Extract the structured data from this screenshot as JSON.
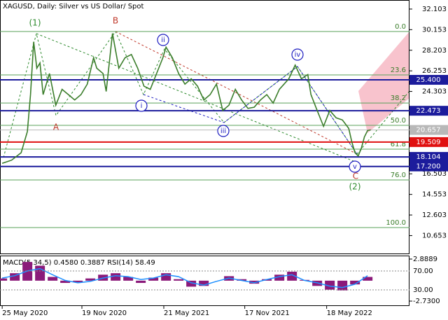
{
  "chart_data": {
    "type": "line",
    "title": "XAGUSD, Daily:  Silver vs US Dollar/ Spot",
    "color": "#3a7d2a",
    "x": [
      0,
      3,
      6,
      8,
      9,
      10,
      11,
      12,
      13,
      15,
      17,
      19,
      21,
      23,
      25,
      27,
      29,
      30,
      32,
      33,
      35,
      37,
      39,
      41,
      43,
      45,
      47,
      49,
      51,
      52,
      54,
      56,
      58,
      60,
      62,
      64,
      66,
      68,
      70,
      72,
      74,
      76,
      78,
      80,
      82,
      84,
      86,
      88,
      91,
      93,
      95,
      97,
      98,
      100,
      102,
      104,
      106,
      108,
      110,
      111,
      112,
      113,
      114,
      115,
      116,
      117
    ],
    "series": [
      {
        "values": [
          17.5,
          17.8,
          18.5,
          20.5,
          24,
          29,
          26.5,
          27,
          24,
          26,
          23,
          24.5,
          24,
          23.5,
          24,
          25,
          27.5,
          26.5,
          26,
          24.3,
          29.8,
          26.5,
          27.5,
          27.8,
          26.5,
          24.8,
          24.5,
          26,
          27.5,
          28.5,
          27.5,
          26,
          25,
          25.5,
          24.8,
          23.5,
          24,
          25,
          22.5,
          23,
          24.5,
          23.5,
          22.7,
          22.8,
          23.5,
          24,
          23.2,
          24.5,
          25.5,
          26.8,
          25.5,
          25.9,
          24,
          22.5,
          21,
          22.5,
          21.8,
          21.6,
          20.8,
          19.5,
          18.5,
          18.2,
          18.9,
          20,
          20.6,
          20.66
        ]
      }
    ],
    "xlim": [
      -0.7,
      129.3
    ],
    "ylim": [
      8.96,
      32.96
    ],
    "yticks": [
      32.103,
      30.153,
      28.203,
      26.253,
      24.303,
      16.503,
      14.553,
      12.603,
      10.653
    ],
    "xticks": [
      {
        "value": 0,
        "label": "25 May 2020"
      },
      {
        "value": 25.3,
        "label": "19 Nov 2020"
      },
      {
        "value": 51.3,
        "label": "21 May 2021"
      },
      {
        "value": 77,
        "label": "17 Nov 2021"
      },
      {
        "value": 103,
        "label": "18 May 2022"
      }
    ],
    "levels": [
      {
        "value": 25.4,
        "label": "25.400",
        "color": "#1c1c9c"
      },
      {
        "value": 22.473,
        "label": "22.473",
        "color": "#1c1c9c"
      },
      {
        "value": 20.657,
        "label": "20.657",
        "color": "#b8b8b8"
      },
      {
        "value": 19.509,
        "label": "19.509",
        "color": "#e01010"
      },
      {
        "value": 18.104,
        "label": "18.104",
        "color": "#1c1c9c"
      },
      {
        "value": 17.2,
        "label": "17.200",
        "color": "#1c1c9c"
      }
    ],
    "fib_levels": [
      {
        "label": "0.0",
        "price": 29.98
      },
      {
        "label": "23.6",
        "price": 25.87
      },
      {
        "label": "38.2",
        "price": 23.21
      },
      {
        "label": "50.0",
        "price": 21.09
      },
      {
        "label": "61.8",
        "price": 18.84
      },
      {
        "label": "76.0",
        "price": 15.92
      },
      {
        "label": "100.0",
        "price": 11.41
      }
    ],
    "wave_labels": [
      {
        "text": "(1)",
        "color": "#2e8b2e"
      },
      {
        "text": "B",
        "color": "#c0392b"
      },
      {
        "text": "ii",
        "color": "#1c1cc0"
      },
      {
        "text": "i",
        "color": "#1c1cc0"
      },
      {
        "text": "A",
        "color": "#c0392b"
      },
      {
        "text": "iii",
        "color": "#1c1cc0"
      },
      {
        "text": "iv",
        "color": "#1c1cc0"
      },
      {
        "text": "v",
        "color": "#1c1cc0"
      },
      {
        "text": "C",
        "color": "#c0392b"
      },
      {
        "text": "(2)",
        "color": "#2e8b2e"
      }
    ],
    "indicator": {
      "text": "MACD(5,34,5) 0.4580 0.3887 RSI(14) 58.49",
      "x": [
        0,
        4,
        8,
        12,
        16,
        20,
        24,
        28,
        32,
        36,
        40,
        44,
        48,
        52,
        56,
        60,
        64,
        68,
        72,
        76,
        80,
        84,
        88,
        92,
        96,
        100,
        104,
        108,
        112,
        116
      ],
      "rsi": [
        55,
        60,
        70,
        75,
        62,
        50,
        45,
        48,
        55,
        60,
        58,
        52,
        55,
        62,
        58,
        45,
        40,
        48,
        55,
        50,
        45,
        52,
        58,
        62,
        50,
        45,
        38,
        35,
        42,
        60
      ],
      "macd": [
        0.3,
        1.0,
        2.5,
        2.0,
        0.5,
        -0.3,
        -0.2,
        0.3,
        0.8,
        1.0,
        0.5,
        -0.3,
        0.4,
        1.0,
        0.2,
        -0.8,
        -0.7,
        0.0,
        0.6,
        0.2,
        -0.4,
        0.2,
        0.8,
        1.2,
        0.1,
        -0.7,
        -1.2,
        -1.3,
        -0.5,
        0.5
      ],
      "rsi_color": "#1e90ff",
      "macd_color": "#8b1a7a",
      "rsi_ylim": [
        -2.6,
        101.1
      ],
      "macd_ylim": [
        -3.29,
        3.26
      ],
      "rsi_ticks": [
        {
          "value": 70,
          "label": "70.00"
        },
        {
          "value": 30,
          "label": "30.00"
        }
      ],
      "macd_ticks": [
        2.8889,
        {
          "value": -2.73,
          "label": "-2.7300"
        }
      ]
    }
  }
}
